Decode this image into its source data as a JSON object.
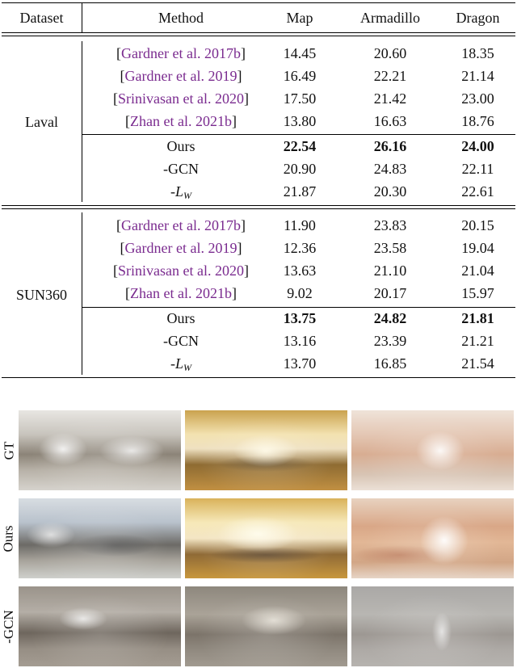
{
  "table": {
    "headers": [
      "Dataset",
      "Method",
      "Map",
      "Armadillo",
      "Dragon"
    ],
    "groups": [
      {
        "dataset": "Laval",
        "rows": [
          {
            "method": "Gardner et al. 2017b",
            "cited": true,
            "map": "14.45",
            "armadillo": "20.60",
            "dragon": "18.35"
          },
          {
            "method": "Gardner et al. 2019",
            "cited": true,
            "map": "16.49",
            "armadillo": "22.21",
            "dragon": "21.14"
          },
          {
            "method": "Srinivasan et al. 2020",
            "cited": true,
            "map": "17.50",
            "armadillo": "21.42",
            "dragon": "23.00"
          },
          {
            "method": "Zhan et al. 2021b",
            "cited": true,
            "map": "13.80",
            "armadillo": "16.63",
            "dragon": "18.76"
          },
          {
            "method": "Ours",
            "bold_values": true,
            "map": "22.54",
            "armadillo": "26.16",
            "dragon": "24.00"
          },
          {
            "method": "-GCN",
            "map": "20.90",
            "armadillo": "24.83",
            "dragon": "22.11"
          },
          {
            "method_prefix": "-",
            "method_symbol": "L",
            "method_sub": "W",
            "map": "21.87",
            "armadillo": "20.30",
            "dragon": "22.61"
          }
        ]
      },
      {
        "dataset": "SUN360",
        "rows": [
          {
            "method": "Gardner et al. 2017b",
            "cited": true,
            "map": "11.90",
            "armadillo": "23.83",
            "dragon": "20.15"
          },
          {
            "method": "Gardner et al. 2019",
            "cited": true,
            "map": "12.36",
            "armadillo": "23.58",
            "dragon": "19.04"
          },
          {
            "method": "Srinivasan et al. 2020",
            "cited": true,
            "map": "13.63",
            "armadillo": "21.10",
            "dragon": "21.04"
          },
          {
            "method": "Zhan et al. 2021b",
            "cited": true,
            "map": "9.02",
            "armadillo": "20.17",
            "dragon": "15.97"
          },
          {
            "method": "Ours",
            "bold_values": true,
            "map": "13.75",
            "armadillo": "24.82",
            "dragon": "21.81"
          },
          {
            "method": "-GCN",
            "map": "13.16",
            "armadillo": "23.39",
            "dragon": "21.21"
          },
          {
            "method_prefix": "-",
            "method_symbol": "L",
            "method_sub": "W",
            "map": "13.70",
            "armadillo": "16.85",
            "dragon": "21.54"
          }
        ]
      }
    ],
    "cite_color": "#7a2b8f"
  },
  "figure": {
    "row_labels": [
      "GT",
      "Ours",
      "-GCN"
    ]
  }
}
